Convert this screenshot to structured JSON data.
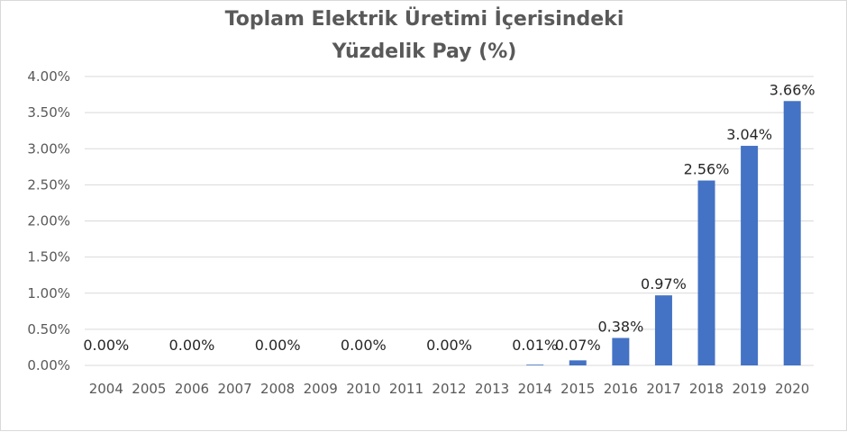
{
  "chart_data": {
    "type": "bar",
    "title_lines": [
      "Toplam Elektrik Üretimi İçerisindeki",
      "Yüzdelik Pay (%)"
    ],
    "xlabel": "",
    "ylabel": "",
    "categories": [
      "2004",
      "2005",
      "2006",
      "2007",
      "2008",
      "2009",
      "2010",
      "2011",
      "2012",
      "2013",
      "2014",
      "2015",
      "2016",
      "2017",
      "2018",
      "2019",
      "2020"
    ],
    "values": [
      0.0,
      0.0,
      0.0,
      0.0,
      0.0,
      0.0,
      0.0,
      0.0,
      0.0,
      0.0,
      0.01,
      0.07,
      0.38,
      0.97,
      2.56,
      3.04,
      3.66
    ],
    "data_labels": [
      "0.00%",
      null,
      "0.00%",
      null,
      "0.00%",
      null,
      "0.00%",
      null,
      "0.00%",
      null,
      "0.01%",
      "0.07%",
      "0.38%",
      "0.97%",
      "2.56%",
      "3.04%",
      "3.66%"
    ],
    "yticks": [
      0,
      0.5,
      1.0,
      1.5,
      2.0,
      2.5,
      3.0,
      3.5,
      4.0
    ],
    "ytick_labels": [
      "0.00%",
      "0.50%",
      "1.00%",
      "1.50%",
      "2.00%",
      "2.50%",
      "3.00%",
      "3.50%",
      "4.00%"
    ],
    "ylim": [
      0,
      4.0
    ],
    "grid": true,
    "legend": "none",
    "colors": {
      "bar": "#4472c4",
      "grid": "#d9d9d9",
      "tick_text": "#595959",
      "label_text": "#262626"
    }
  }
}
